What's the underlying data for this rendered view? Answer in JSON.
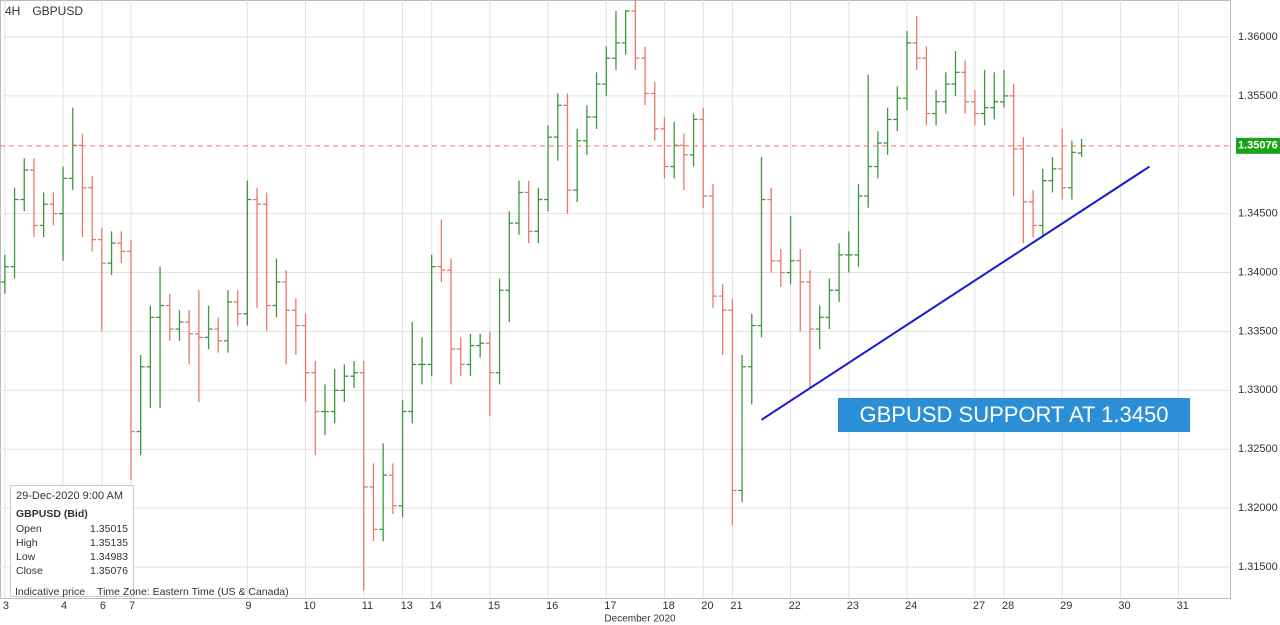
{
  "chart_data": {
    "type": "ohlc",
    "timeframe": "4H",
    "symbol": "GBPUSD",
    "up_color": "#3a9a3a",
    "down_color": "#e8796c",
    "open": [
      1.3392,
      1.3405,
      1.3462,
      1.3487,
      1.344,
      1.3458,
      1.345,
      1.348,
      1.3508,
      1.3472,
      1.3428,
      1.3408,
      1.3425,
      1.3418,
      1.3265,
      1.332,
      1.3362,
      1.3372,
      1.3352,
      1.3358,
      1.3348,
      1.3345,
      1.3352,
      1.3342,
      1.3375,
      1.3365,
      1.3462,
      1.3458,
      1.3372,
      1.3392,
      1.3368,
      1.3355,
      1.3315,
      1.3282,
      1.3282,
      1.33,
      1.3312,
      1.3315,
      1.3218,
      1.3182,
      1.3228,
      1.3202,
      1.3282,
      1.3322,
      1.3322,
      1.3405,
      1.3402,
      1.3335,
      1.3322,
      1.3338,
      1.334,
      1.3315,
      1.3385,
      1.3442,
      1.3468,
      1.3435,
      1.3462,
      1.3515,
      1.3542,
      1.347,
      1.3512,
      1.3532,
      1.356,
      1.3582,
      1.3595,
      1.3622,
      1.3582,
      1.3552,
      1.3522,
      1.349,
      1.3508,
      1.35,
      1.353,
      1.3465,
      1.338,
      1.3368,
      1.3215,
      1.332,
      1.3355,
      1.3462,
      1.341,
      1.34,
      1.341,
      1.3392,
      1.3352,
      1.3362,
      1.3385,
      1.3415,
      1.3415,
      1.3465,
      1.349,
      1.351,
      1.353,
      1.3548,
      1.3595,
      1.3582,
      1.3535,
      1.3545,
      1.356,
      1.357,
      1.3545,
      1.3535,
      1.354,
      1.3545,
      1.355,
      1.3505,
      1.346,
      1.344,
      1.3478,
      1.3488,
      1.3472,
      1.35015
    ],
    "high": [
      1.3415,
      1.3472,
      1.3497,
      1.3497,
      1.3468,
      1.3468,
      1.349,
      1.354,
      1.3518,
      1.3482,
      1.3438,
      1.3435,
      1.3435,
      1.3428,
      1.333,
      1.3372,
      1.3405,
      1.3382,
      1.3368,
      1.3368,
      1.3385,
      1.3372,
      1.3362,
      1.3385,
      1.3385,
      1.3478,
      1.3472,
      1.3468,
      1.3412,
      1.3402,
      1.3378,
      1.3365,
      1.3325,
      1.3305,
      1.3318,
      1.3322,
      1.3325,
      1.3325,
      1.3238,
      1.3255,
      1.3238,
      1.3292,
      1.3358,
      1.3345,
      1.3415,
      1.3445,
      1.3412,
      1.3345,
      1.3348,
      1.3348,
      1.335,
      1.3395,
      1.3452,
      1.3478,
      1.3478,
      1.3472,
      1.3525,
      1.3552,
      1.3552,
      1.3522,
      1.3542,
      1.357,
      1.3592,
      1.3622,
      1.3623,
      1.3632,
      1.3592,
      1.3562,
      1.3532,
      1.3528,
      1.3518,
      1.3535,
      1.354,
      1.3475,
      1.339,
      1.3378,
      1.333,
      1.3365,
      1.3498,
      1.3472,
      1.342,
      1.3448,
      1.342,
      1.3402,
      1.3372,
      1.3395,
      1.3425,
      1.3435,
      1.3475,
      1.3568,
      1.352,
      1.354,
      1.3558,
      1.3605,
      1.3618,
      1.3592,
      1.3555,
      1.357,
      1.3588,
      1.358,
      1.3555,
      1.3572,
      1.357,
      1.3572,
      1.356,
      1.3515,
      1.347,
      1.3488,
      1.3498,
      1.3522,
      1.3512,
      1.35135
    ],
    "low": [
      1.3382,
      1.3395,
      1.3452,
      1.343,
      1.343,
      1.344,
      1.341,
      1.347,
      1.343,
      1.3418,
      1.335,
      1.3398,
      1.3408,
      1.3224,
      1.3245,
      1.3285,
      1.3285,
      1.3342,
      1.3342,
      1.3322,
      1.329,
      1.3335,
      1.3332,
      1.3332,
      1.3355,
      1.3355,
      1.337,
      1.335,
      1.3362,
      1.3322,
      1.333,
      1.329,
      1.3245,
      1.3262,
      1.3272,
      1.329,
      1.3302,
      1.313,
      1.3172,
      1.3172,
      1.3195,
      1.3192,
      1.3272,
      1.3305,
      1.3312,
      1.3392,
      1.3305,
      1.3312,
      1.3312,
      1.3328,
      1.3278,
      1.3305,
      1.3358,
      1.3432,
      1.3425,
      1.3425,
      1.3452,
      1.3495,
      1.345,
      1.346,
      1.35,
      1.3522,
      1.355,
      1.3572,
      1.3585,
      1.3572,
      1.3542,
      1.3512,
      1.348,
      1.348,
      1.347,
      1.349,
      1.3455,
      1.337,
      1.333,
      1.3185,
      1.3205,
      1.3288,
      1.3345,
      1.34,
      1.3388,
      1.339,
      1.335,
      1.3302,
      1.3335,
      1.3352,
      1.3375,
      1.34,
      1.3405,
      1.3455,
      1.348,
      1.35,
      1.352,
      1.3538,
      1.3572,
      1.3525,
      1.3525,
      1.3535,
      1.355,
      1.3535,
      1.3525,
      1.3525,
      1.353,
      1.354,
      1.3465,
      1.3425,
      1.343,
      1.343,
      1.3468,
      1.3462,
      1.3462,
      1.34983
    ],
    "close": [
      1.3405,
      1.3462,
      1.3487,
      1.344,
      1.3458,
      1.345,
      1.348,
      1.3508,
      1.3472,
      1.3428,
      1.3408,
      1.3425,
      1.3418,
      1.3265,
      1.332,
      1.3362,
      1.3372,
      1.3352,
      1.3358,
      1.3348,
      1.3345,
      1.3352,
      1.3342,
      1.3375,
      1.3365,
      1.3462,
      1.3458,
      1.3372,
      1.3392,
      1.3368,
      1.3355,
      1.3315,
      1.3282,
      1.3282,
      1.33,
      1.3312,
      1.3315,
      1.3218,
      1.3182,
      1.3228,
      1.3202,
      1.3282,
      1.3322,
      1.3322,
      1.3405,
      1.3402,
      1.3335,
      1.3322,
      1.3338,
      1.334,
      1.3315,
      1.3385,
      1.3442,
      1.3468,
      1.3435,
      1.3462,
      1.3515,
      1.3542,
      1.347,
      1.3512,
      1.3532,
      1.356,
      1.3582,
      1.3595,
      1.3622,
      1.3582,
      1.3552,
      1.3522,
      1.349,
      1.3508,
      1.35,
      1.353,
      1.3465,
      1.338,
      1.3368,
      1.3215,
      1.332,
      1.3355,
      1.3462,
      1.341,
      1.34,
      1.341,
      1.3392,
      1.3352,
      1.3362,
      1.3385,
      1.3415,
      1.3415,
      1.3465,
      1.349,
      1.351,
      1.353,
      1.3548,
      1.3595,
      1.3582,
      1.3535,
      1.3545,
      1.356,
      1.357,
      1.3545,
      1.3535,
      1.354,
      1.3545,
      1.355,
      1.3505,
      1.346,
      1.344,
      1.3478,
      1.3488,
      1.3472,
      1.3502,
      1.35076
    ],
    "xlim": [
      -0.5,
      126.3
    ],
    "ylim": [
      1.31237,
      1.36314
    ],
    "xticks": [
      {
        "value": 0,
        "label": "3"
      },
      {
        "value": 6,
        "label": "4"
      },
      {
        "value": 10,
        "label": "6"
      },
      {
        "value": 13,
        "label": "7"
      },
      {
        "value": 25,
        "label": "9"
      },
      {
        "value": 31,
        "label": "10"
      },
      {
        "value": 37,
        "label": "11"
      },
      {
        "value": 41,
        "label": "13"
      },
      {
        "value": 44,
        "label": "14"
      },
      {
        "value": 50,
        "label": "15"
      },
      {
        "value": 56,
        "label": "16"
      },
      {
        "value": 62,
        "label": "17"
      },
      {
        "value": 68,
        "label": "18"
      },
      {
        "value": 72,
        "label": "20"
      },
      {
        "value": 75,
        "label": "21"
      },
      {
        "value": 81,
        "label": "22"
      },
      {
        "value": 87,
        "label": "23"
      },
      {
        "value": 93,
        "label": "24"
      },
      {
        "value": 100,
        "label": "27"
      },
      {
        "value": 103,
        "label": "28"
      },
      {
        "value": 109,
        "label": "29"
      },
      {
        "value": 115,
        "label": "30"
      },
      {
        "value": 121,
        "label": "31"
      }
    ],
    "xlabel": "December 2020",
    "yticks": [
      {
        "value": 1.315,
        "label": "1.31500"
      },
      {
        "value": 1.32,
        "label": "1.32000"
      },
      {
        "value": 1.325,
        "label": "1.32500"
      },
      {
        "value": 1.33,
        "label": "1.33000"
      },
      {
        "value": 1.335,
        "label": "1.33500"
      },
      {
        "value": 1.34,
        "label": "1.34000"
      },
      {
        "value": 1.345,
        "label": "1.34500"
      },
      {
        "value": 1.355,
        "label": "1.35500"
      },
      {
        "value": 1.36,
        "label": "1.36000"
      }
    ],
    "grid": true,
    "last_price": {
      "value": 1.35076,
      "label": "1.35076",
      "color": "#1aa31a"
    },
    "trendline": {
      "x": [
        78,
        118
      ],
      "y": [
        1.3275,
        1.349
      ],
      "color": "#1a1ad0"
    },
    "annotation": "GBPUSD SUPPORT AT 1.3450",
    "info": {
      "datetime": "29-Dec-2020 9:00 AM",
      "title": "GBPUSD (Bid)",
      "labels": [
        "Open",
        "High",
        "Low",
        "Close"
      ]
    },
    "footer": [
      "Indicative price",
      "Time Zone: Eastern Time (US & Canada)"
    ]
  }
}
